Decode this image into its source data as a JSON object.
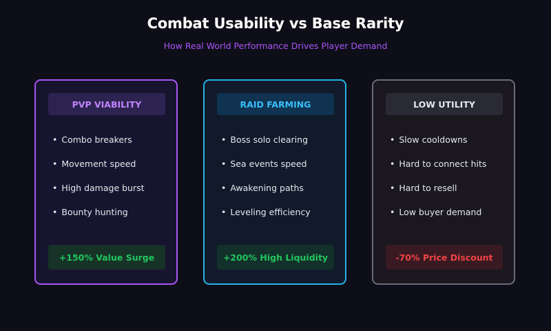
{
  "title": "Combat Usability vs Base Rarity",
  "subtitle": "How Real World Performance Drives Player Demand",
  "cards": [
    {
      "header": "PVP VIABILITY",
      "accent": "#a855f7",
      "items": [
        "Combo breakers",
        "Movement speed",
        "High damage burst",
        "Bounty hunting"
      ],
      "footer": "+150% Value Surge",
      "footer_color": "#22c55e"
    },
    {
      "header": "RAID FARMING",
      "accent": "#22b4e6",
      "items": [
        "Boss solo clearing",
        "Sea events speed",
        "Awakening paths",
        "Leveling efficiency"
      ],
      "footer": "+200% High Liquidity",
      "footer_color": "#22c55e"
    },
    {
      "header": "LOW UTILITY",
      "accent": "#6b6b7a",
      "items": [
        "Slow cooldowns",
        "Hard to connect hits",
        "Hard to resell",
        "Low buyer demand"
      ],
      "footer": "-70% Price Discount",
      "footer_color": "#ef4444"
    }
  ]
}
